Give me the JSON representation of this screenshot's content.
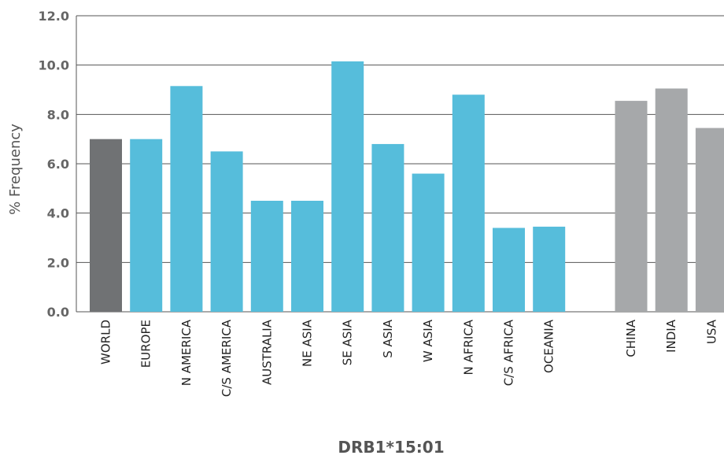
{
  "chart_data": {
    "type": "bar",
    "xlabel": "DRB1*15:01",
    "ylabel": "% Frequency",
    "ylim": [
      0,
      12
    ],
    "yticks": [
      "0.0",
      "2.0",
      "4.0",
      "6.0",
      "8.0",
      "10.0",
      "12.0"
    ],
    "grid": true,
    "categories": [
      "WORLD",
      "EUROPE",
      "N AMERICA",
      "C/S AMERICA",
      "AUSTRALIA",
      "NE ASIA",
      "SE ASIA",
      "S ASIA",
      "W ASIA",
      "N AFRICA",
      "C/S AFRICA",
      "OCEANIA",
      "CHINA",
      "INDIA",
      "USA"
    ],
    "values": [
      7.0,
      7.0,
      9.15,
      6.5,
      4.5,
      4.5,
      10.15,
      6.8,
      5.6,
      8.8,
      3.4,
      3.45,
      8.55,
      9.05,
      7.45
    ],
    "colors": {
      "world": "#707274",
      "region": "#56bddb",
      "country": "#a6a8aa",
      "grid": "#555555"
    },
    "groups": [
      "world",
      "region",
      "region",
      "region",
      "region",
      "region",
      "region",
      "region",
      "region",
      "region",
      "region",
      "region",
      "country",
      "country",
      "country"
    ]
  }
}
